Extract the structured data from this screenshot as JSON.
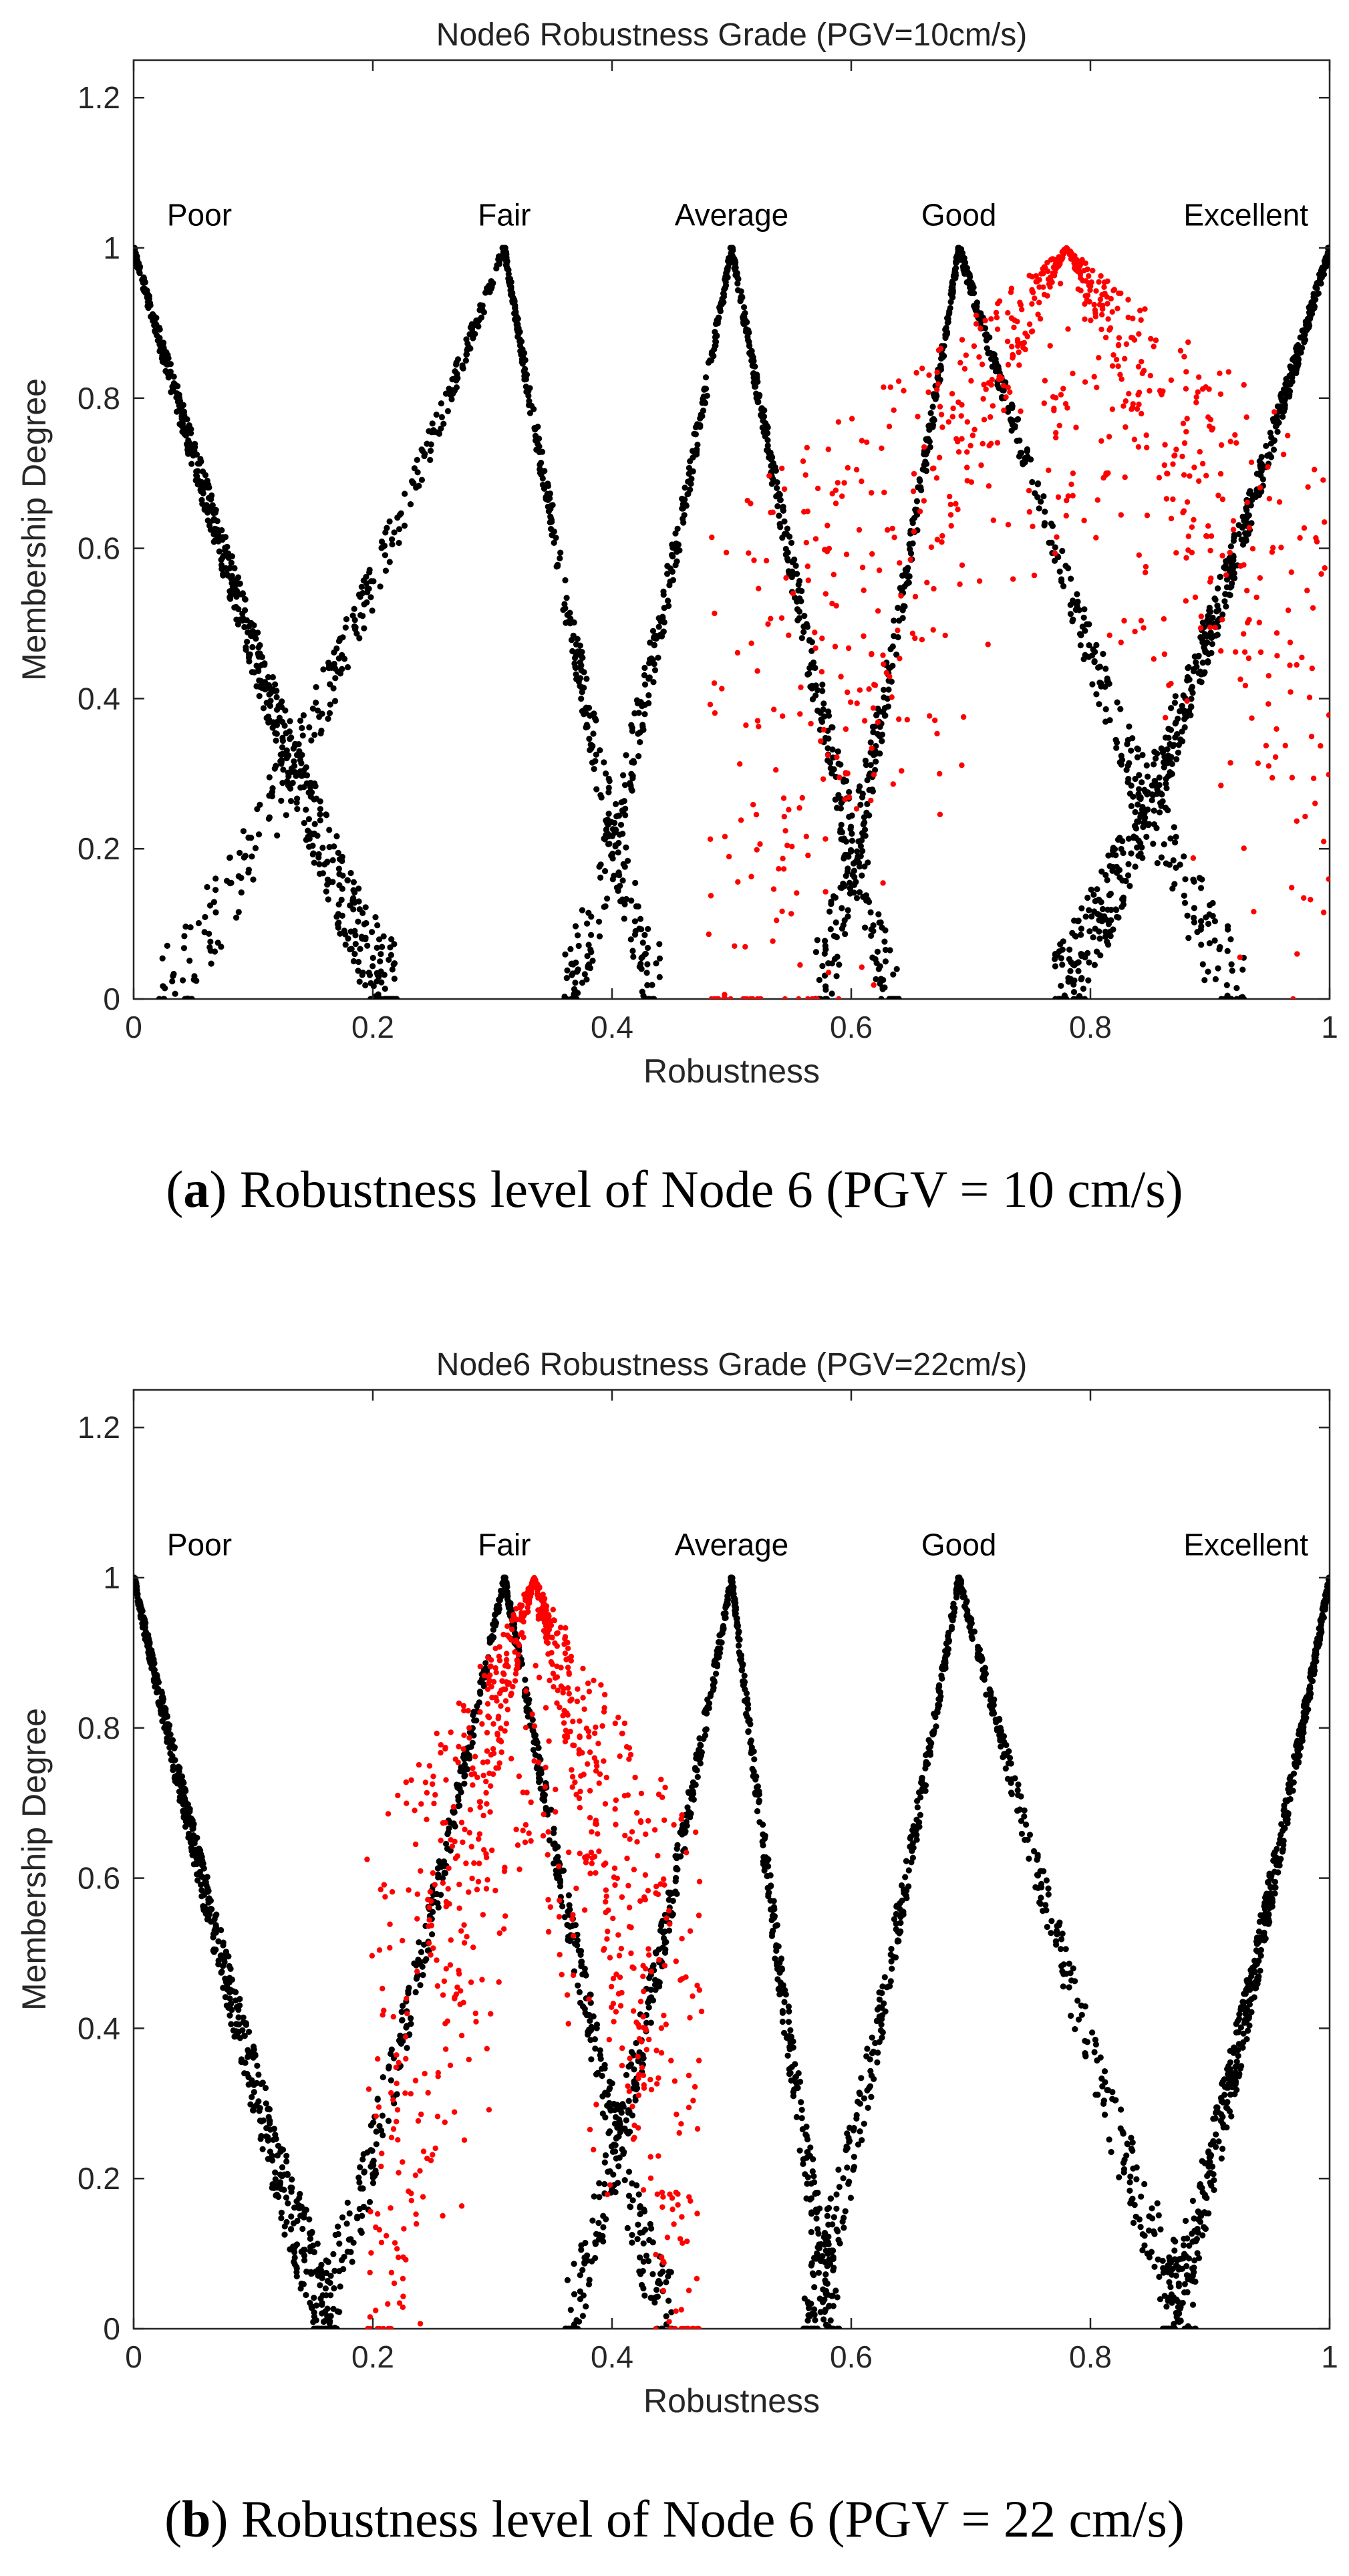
{
  "chart_data": [
    {
      "type": "scatter",
      "title": "Node6 Robustness Grade (PGV=10cm/s)",
      "xlabel": "Robustness",
      "ylabel": "Membership Degree",
      "xlim": [
        0,
        1
      ],
      "ylim": [
        0,
        1.25
      ],
      "xticks": [
        "0",
        "0.2",
        "0.4",
        "0.6",
        "0.8",
        "1"
      ],
      "yticks": [
        "0",
        "0.2",
        "0.4",
        "0.6",
        "0.8",
        "1",
        "1.2"
      ],
      "grid": false,
      "grade_labels": [
        {
          "label": "Poor",
          "x": 0.055,
          "y": 1.03
        },
        {
          "label": "Fair",
          "x": 0.31,
          "y": 1.03
        },
        {
          "label": "Average",
          "x": 0.5,
          "y": 1.03
        },
        {
          "label": "Good",
          "x": 0.69,
          "y": 1.03
        },
        {
          "label": "Excellent",
          "x": 0.93,
          "y": 1.03
        }
      ],
      "series": [
        {
          "name": "Grade membership functions",
          "color": "#000000",
          "peaks": [
            0,
            0.31,
            0.5,
            0.69,
            1.0
          ],
          "left_spread": [
            0.0,
            0.29,
            0.14,
            0.12,
            0.23
          ],
          "right_spread": [
            0.22,
            0.13,
            0.14,
            0.24,
            0.0
          ],
          "points_per_grade": 620
        },
        {
          "name": "Sample robustness points",
          "color": "#ff0000",
          "center": 0.78,
          "spread": 0.3,
          "points": 900
        }
      ],
      "caption_label": "a",
      "caption_text": "Robustness level of Node 6 (PGV = 10 cm/s)"
    },
    {
      "type": "scatter",
      "title": "Node6 Robustness Grade (PGV=22cm/s)",
      "xlabel": "Robustness",
      "ylabel": "Membership Degree",
      "xlim": [
        0,
        1
      ],
      "ylim": [
        0,
        1.25
      ],
      "xticks": [
        "0",
        "0.2",
        "0.4",
        "0.6",
        "0.8",
        "1"
      ],
      "yticks": [
        "0",
        "0.2",
        "0.4",
        "0.6",
        "0.8",
        "1",
        "1.2"
      ],
      "grid": false,
      "grade_labels": [
        {
          "label": "Poor",
          "x": 0.055,
          "y": 1.03
        },
        {
          "label": "Fair",
          "x": 0.31,
          "y": 1.03
        },
        {
          "label": "Average",
          "x": 0.5,
          "y": 1.03
        },
        {
          "label": "Good",
          "x": 0.69,
          "y": 1.03
        },
        {
          "label": "Excellent",
          "x": 0.93,
          "y": 1.03
        }
      ],
      "series": [
        {
          "name": "Grade membership functions",
          "color": "#000000",
          "peaks": [
            0,
            0.31,
            0.5,
            0.69,
            1.0
          ],
          "left_spread": [
            0.0,
            0.16,
            0.14,
            0.13,
            0.14
          ],
          "right_spread": [
            0.17,
            0.14,
            0.09,
            0.2,
            0.0
          ],
          "points_per_grade": 620
        },
        {
          "name": "Sample robustness points",
          "color": "#ff0000",
          "center": 0.335,
          "spread": 0.14,
          "points": 900
        }
      ],
      "caption_label": "b",
      "caption_text": "Robustness level of Node 6 (PGV = 22 cm/s)"
    }
  ]
}
